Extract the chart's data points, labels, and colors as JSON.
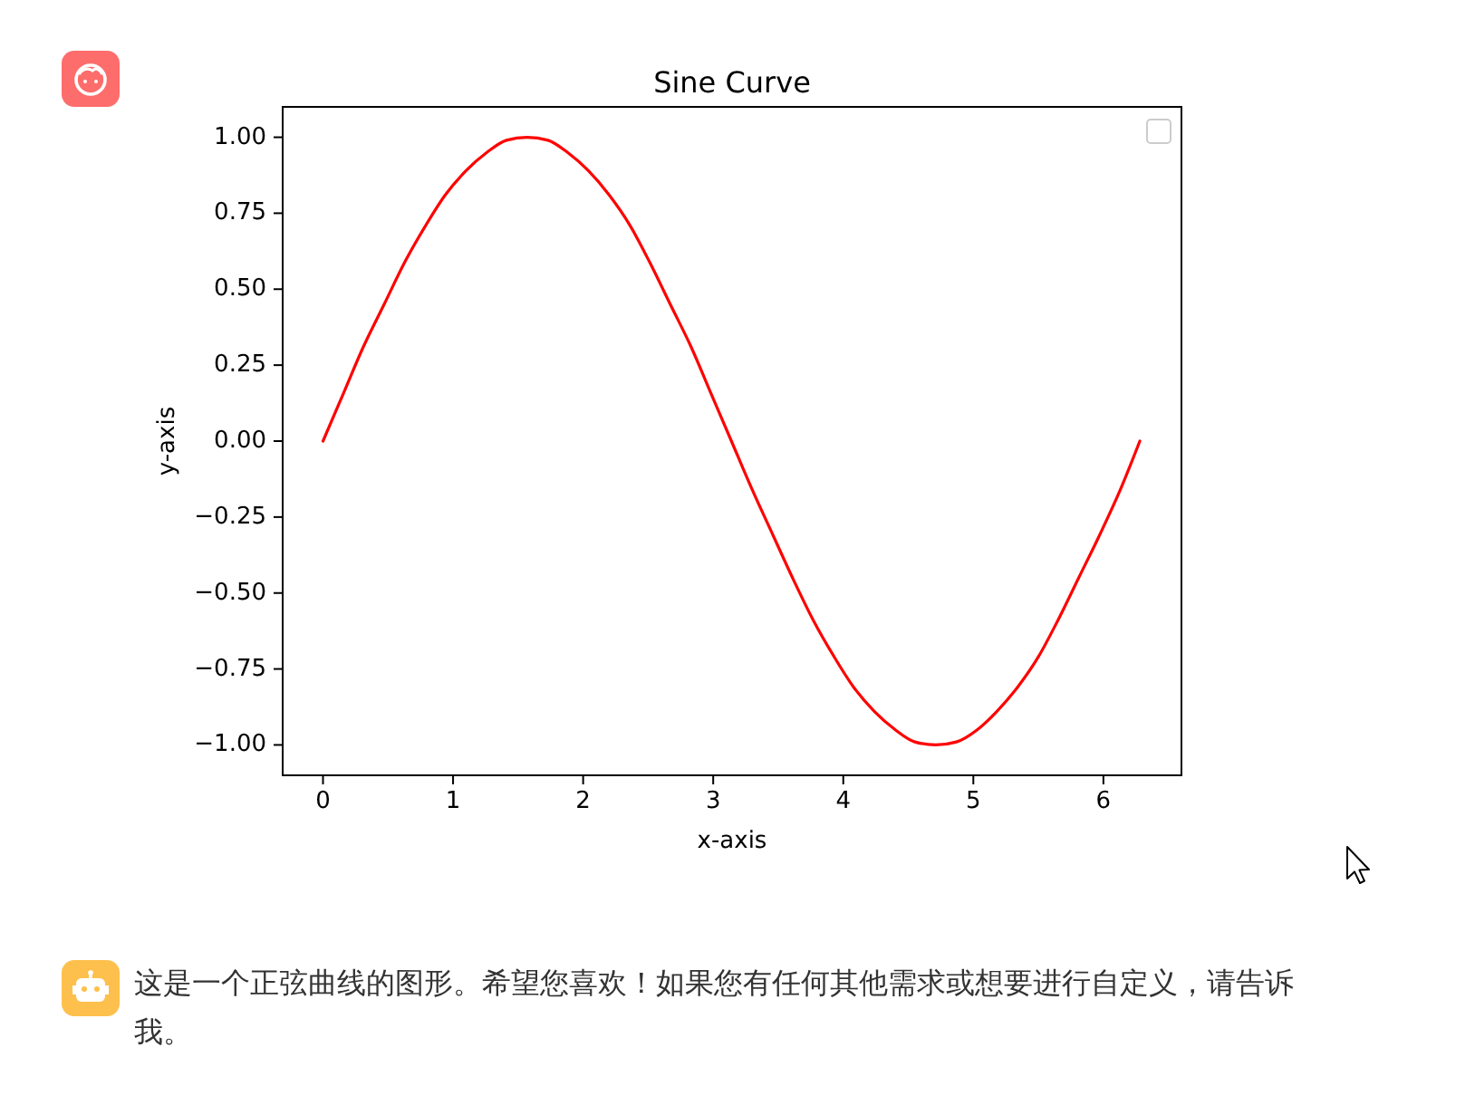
{
  "chart_data": {
    "type": "line",
    "title": "Sine Curve",
    "xlabel": "x-axis",
    "ylabel": "y-axis",
    "x": [
      0,
      0.16,
      0.31,
      0.47,
      0.63,
      0.79,
      0.94,
      1.1,
      1.26,
      1.41,
      1.57,
      1.73,
      1.88,
      2.04,
      2.2,
      2.36,
      2.51,
      2.67,
      2.83,
      2.98,
      3.14,
      3.3,
      3.46,
      3.61,
      3.77,
      3.93,
      4.08,
      4.24,
      4.4,
      4.55,
      4.71,
      4.87,
      5.03,
      5.18,
      5.34,
      5.5,
      5.65,
      5.81,
      5.97,
      6.13,
      6.28
    ],
    "values": [
      0,
      0.16,
      0.31,
      0.45,
      0.59,
      0.71,
      0.81,
      0.89,
      0.95,
      0.99,
      1,
      0.99,
      0.95,
      0.89,
      0.81,
      0.71,
      0.59,
      0.45,
      0.31,
      0.16,
      0,
      -0.16,
      -0.31,
      -0.45,
      -0.59,
      -0.71,
      -0.81,
      -0.89,
      -0.95,
      -0.99,
      -1,
      -0.99,
      -0.95,
      -0.89,
      -0.81,
      -0.71,
      -0.59,
      -0.45,
      -0.31,
      -0.16,
      0
    ],
    "color": "#ff0000",
    "xlim": [
      -0.31,
      6.6
    ],
    "ylim": [
      -1.1,
      1.1
    ],
    "xticks": [
      0,
      1,
      2,
      3,
      4,
      5,
      6
    ],
    "yticks": [
      {
        "value": -1,
        "label": "−1.00"
      },
      {
        "value": -0.75,
        "label": "−0.75"
      },
      {
        "value": -0.5,
        "label": "−0.50"
      },
      {
        "value": -0.25,
        "label": "−0.25"
      },
      {
        "value": 0,
        "label": "0.00"
      },
      {
        "value": 0.25,
        "label": "0.25"
      },
      {
        "value": 0.5,
        "label": "0.50"
      },
      {
        "value": 0.75,
        "label": "0.75"
      },
      {
        "value": 1,
        "label": "1.00"
      }
    ],
    "grid": false,
    "annotations": [
      "这是一个正弦曲线的图形。希望您喜欢！如果您有任何其他需求或想要进行自定义，请告诉我。"
    ]
  }
}
